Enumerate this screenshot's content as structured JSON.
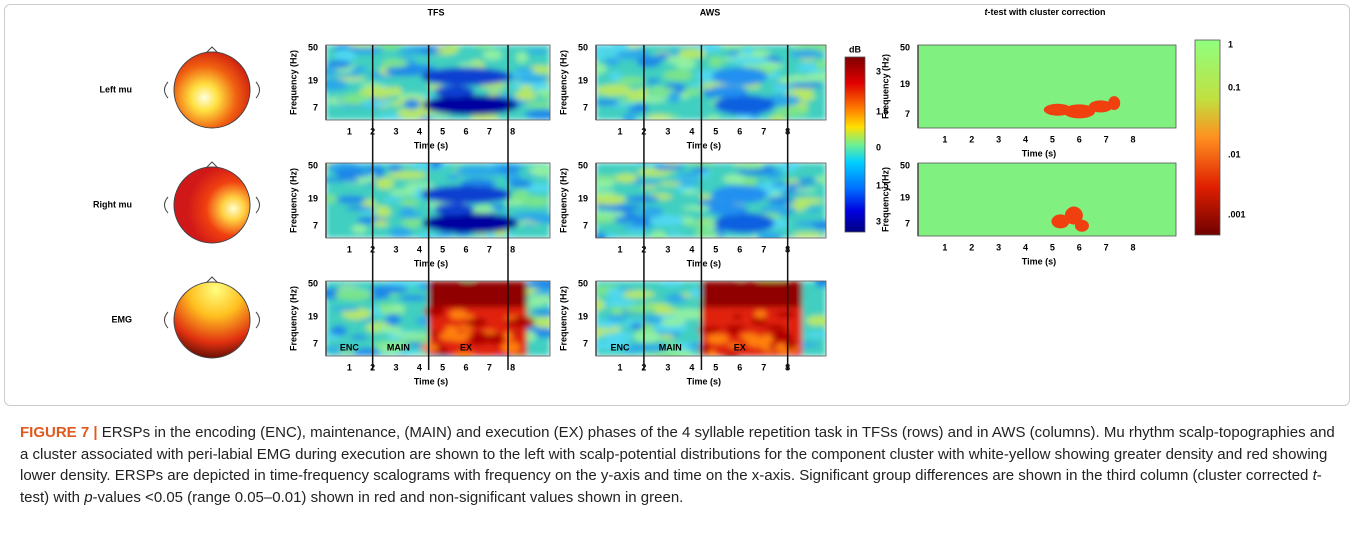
{
  "columns": [
    "TFS",
    "AWS"
  ],
  "ttest_title": {
    "italic": "t",
    "rest": "-test with cluster correction"
  },
  "rows": [
    "Left mu",
    "Right mu",
    "EMG"
  ],
  "axes": {
    "y_label": "Frequency (Hz)",
    "x_label": "Time (s)",
    "yticks": [
      "50",
      "19",
      "7"
    ],
    "xticks": [
      "1",
      "2",
      "3",
      "4",
      "5",
      "6",
      "7",
      "8"
    ]
  },
  "phases": [
    "ENC",
    "MAIN",
    "EX"
  ],
  "db_colorbar": {
    "title": "dB",
    "ticks": [
      "3",
      "1.5",
      "0",
      "1.5",
      "3"
    ]
  },
  "p_colorbar": {
    "ticks": [
      "1",
      "0.1",
      ".01",
      ".001"
    ]
  },
  "caption": {
    "label": "FIGURE 7 |",
    "parts": [
      "ERSPs in the encoding (ENC), maintenance, (MAIN) and execution (EX) phases of the 4 syllable repetition task in TFSs (rows) and in AWS (columns). Mu rhythm scalp-topographies and a cluster associated with peri-labial EMG during execution are shown to the left with scalp-potential distributions for the component cluster with white-yellow showing greater density and red showing lower density. ERSPs are depicted in time-frequency scalograms with frequency on the y-axis and time on the x-axis. Significant group differences are shown in the third column (cluster corrected ",
      "t",
      "-test) with ",
      "p",
      "-values <0.05 (range 0.05–0.01) shown in red and non-significant values shown in green."
    ]
  }
}
